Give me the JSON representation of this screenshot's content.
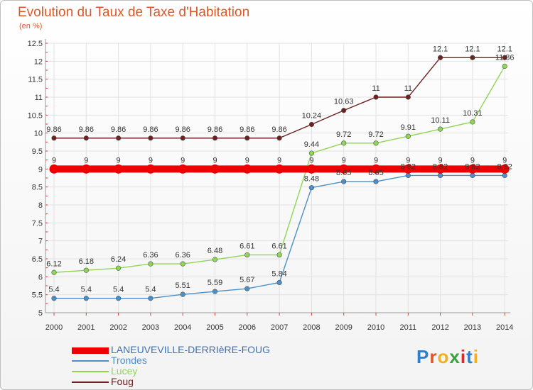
{
  "title": "Evolution du Taux de Taxe d'Habitation",
  "unit_label": "(en %)",
  "brand": "Proxiti",
  "chart_data": {
    "type": "line",
    "title": "Evolution du Taux de Taxe d'Habitation",
    "ylabel": "(en %)",
    "xlabel": "",
    "ylim": [
      5,
      12.5
    ],
    "y_ticks": [
      5,
      5.5,
      6,
      6.5,
      7,
      7.5,
      8,
      8.5,
      9,
      9.5,
      10,
      10.5,
      11,
      11.5,
      12,
      12.5
    ],
    "grid": true,
    "legend_position": "bottom-left",
    "x": [
      "2000",
      "2001",
      "2002",
      "2003",
      "2004",
      "2005",
      "2006",
      "2007",
      "2008",
      "2009",
      "2010",
      "2011",
      "2012",
      "2013",
      "2014"
    ],
    "series": [
      {
        "name": "LANEUVEVILLE-DERRIèRE-FOUG",
        "color": "#ee0000",
        "values": [
          9,
          9,
          9,
          9,
          9,
          9,
          9,
          9,
          9,
          9,
          9,
          9,
          9,
          9,
          9
        ]
      },
      {
        "name": "Trondes",
        "color": "#4a8fc8",
        "values": [
          5.4,
          5.4,
          5.4,
          5.4,
          5.51,
          5.59,
          5.67,
          5.84,
          8.48,
          8.65,
          8.65,
          8.82,
          8.82,
          8.82,
          8.82
        ]
      },
      {
        "name": "Lucey",
        "color": "#8ed654",
        "values": [
          6.12,
          6.18,
          6.24,
          6.36,
          6.36,
          6.48,
          6.61,
          6.61,
          9.44,
          9.72,
          9.72,
          9.91,
          10.11,
          10.31,
          11.86
        ]
      },
      {
        "name": "Foug",
        "color": "#6b2220",
        "values": [
          9.86,
          9.86,
          9.86,
          9.86,
          9.86,
          9.86,
          9.86,
          9.86,
          10.24,
          10.63,
          11,
          11,
          12.1,
          12.1,
          12.1
        ]
      }
    ]
  }
}
